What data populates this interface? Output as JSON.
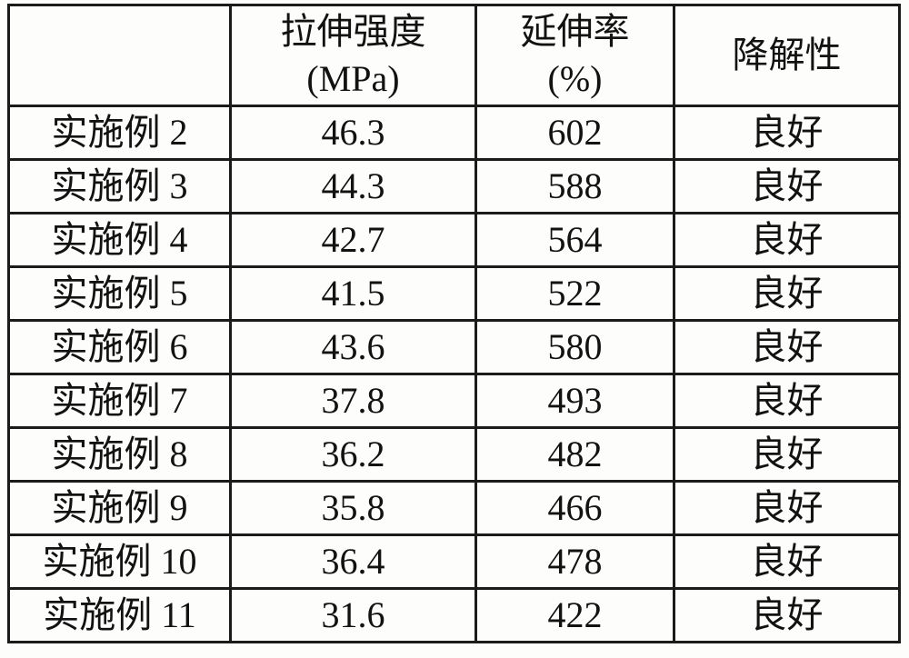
{
  "table": {
    "columns": [
      {
        "line1": "",
        "line2": ""
      },
      {
        "line1": "拉伸强度",
        "line2": "(MPa)"
      },
      {
        "line1": "延伸率",
        "line2": "(%)"
      },
      {
        "line1": "降解性",
        "line2": ""
      }
    ],
    "rows": [
      {
        "label": "实施例 2",
        "values": [
          "46.3",
          "602",
          "良好"
        ]
      },
      {
        "label": "实施例 3",
        "values": [
          "44.3",
          "588",
          "良好"
        ]
      },
      {
        "label": "实施例 4",
        "values": [
          "42.7",
          "564",
          "良好"
        ]
      },
      {
        "label": "实施例 5",
        "values": [
          "41.5",
          "522",
          "良好"
        ]
      },
      {
        "label": "实施例 6",
        "values": [
          "43.6",
          "580",
          "良好"
        ]
      },
      {
        "label": "实施例 7",
        "values": [
          "37.8",
          "493",
          "良好"
        ]
      },
      {
        "label": "实施例 8",
        "values": [
          "36.2",
          "482",
          "良好"
        ]
      },
      {
        "label": "实施例 9",
        "values": [
          "35.8",
          "466",
          "良好"
        ]
      },
      {
        "label": "实施例 10",
        "values": [
          "36.4",
          "478",
          "良好"
        ]
      },
      {
        "label": "实施例 11",
        "values": [
          "31.6",
          "422",
          "良好"
        ]
      }
    ]
  }
}
